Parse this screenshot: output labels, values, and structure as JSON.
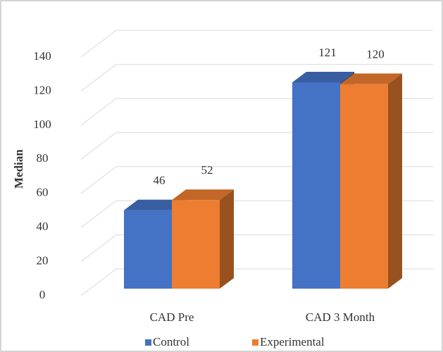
{
  "chart_data": {
    "type": "bar3d",
    "ylabel": "Median",
    "categories": [
      "CAD Pre",
      "CAD 3 Month"
    ],
    "series": [
      {
        "name": "Control",
        "color": "#4472c4",
        "values": [
          46,
          121
        ]
      },
      {
        "name": "Experimental",
        "color": "#ed7d31",
        "values": [
          52,
          120
        ]
      }
    ],
    "ylim": [
      0,
      140
    ],
    "yticks": [
      0,
      20,
      40,
      60,
      80,
      100,
      120,
      140
    ],
    "grid": true,
    "legend": "bottom"
  }
}
